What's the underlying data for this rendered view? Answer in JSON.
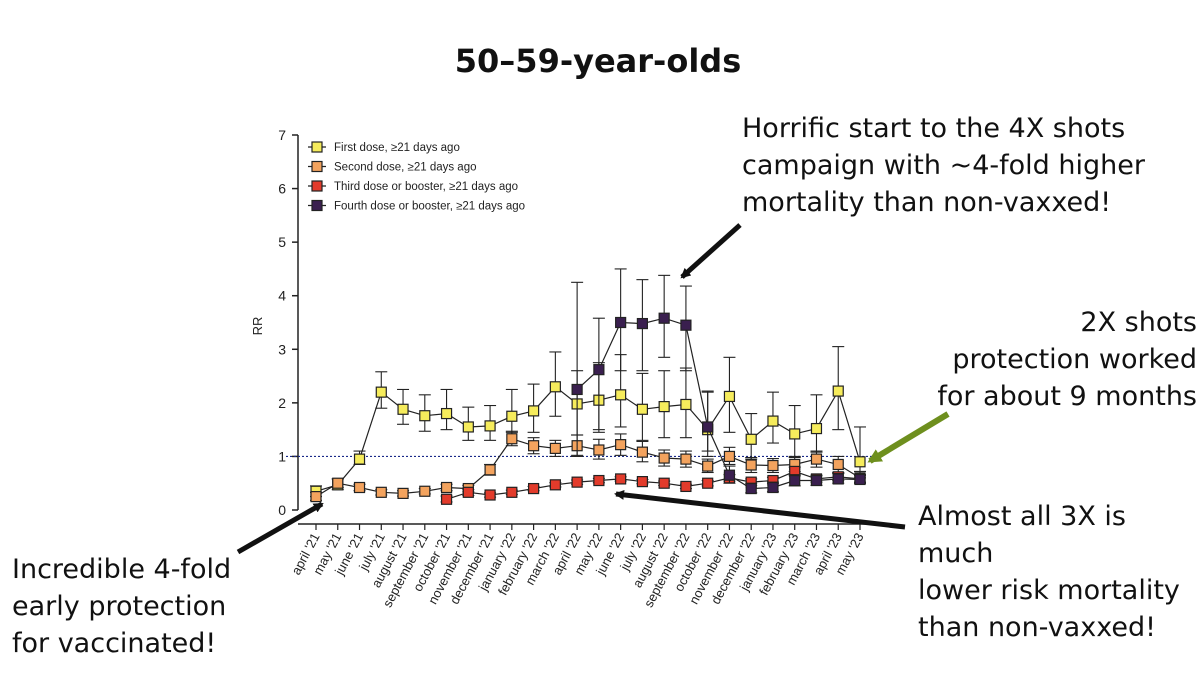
{
  "chart_data": {
    "type": "line",
    "title": "50–59-year-olds",
    "ylabel": "RR",
    "xlabel": "",
    "ylim": [
      0,
      7
    ],
    "yticks": [
      "0",
      "1",
      "2",
      "3",
      "4",
      "5",
      "6",
      "7"
    ],
    "reference_line": 1,
    "legend_position": "top-left",
    "categories": [
      "april '21",
      "may '21",
      "june '21",
      "july '21",
      "august '21",
      "september '21",
      "october '21",
      "november '21",
      "december '21",
      "january '22",
      "february '22",
      "march '22",
      "april '22",
      "may '22",
      "june '22",
      "july '22",
      "august '22",
      "september '22",
      "october '22",
      "november '22",
      "december '22",
      "january '23",
      "february '23",
      "march '23",
      "april '23",
      "may '23"
    ],
    "series": [
      {
        "name": "First dose, ≥21 days ago",
        "color": "#f6ec5c",
        "values": [
          0.35,
          0.47,
          0.95,
          2.2,
          1.88,
          1.76,
          1.8,
          1.55,
          1.57,
          1.75,
          1.85,
          2.3,
          1.98,
          2.05,
          2.15,
          1.88,
          1.93,
          1.97,
          1.5,
          2.12,
          1.32,
          1.66,
          1.42,
          1.52,
          2.22,
          0.9
        ],
        "err_low": [
          0.25,
          0.38,
          0.85,
          1.9,
          1.6,
          1.47,
          1.5,
          1.3,
          1.3,
          1.45,
          1.45,
          1.75,
          1.4,
          1.45,
          1.55,
          1.3,
          1.35,
          1.35,
          1.0,
          1.45,
          0.95,
          1.25,
          1.0,
          1.08,
          1.5,
          0.6
        ],
        "err_high": [
          0.45,
          0.58,
          1.1,
          2.58,
          2.25,
          2.15,
          2.25,
          1.92,
          1.95,
          2.25,
          2.35,
          2.95,
          2.6,
          2.75,
          2.9,
          2.55,
          2.6,
          2.65,
          2.2,
          2.85,
          1.8,
          2.2,
          1.95,
          2.15,
          3.05,
          1.55
        ]
      },
      {
        "name": "Second dose, ≥21 days ago",
        "color": "#f3a35e",
        "values": [
          0.25,
          0.5,
          0.42,
          0.33,
          0.31,
          0.35,
          0.42,
          0.4,
          0.75,
          1.33,
          1.2,
          1.15,
          1.2,
          1.12,
          1.22,
          1.08,
          0.97,
          0.95,
          0.82,
          1.0,
          0.84,
          0.83,
          0.85,
          0.95,
          0.85,
          0.6
        ],
        "err_low": [
          0.18,
          0.42,
          0.36,
          0.28,
          0.26,
          0.3,
          0.36,
          0.34,
          0.65,
          1.2,
          1.05,
          1.0,
          1.02,
          0.95,
          1.02,
          0.9,
          0.82,
          0.8,
          0.7,
          0.85,
          0.7,
          0.7,
          0.72,
          0.8,
          0.7,
          0.5
        ],
        "err_high": [
          0.33,
          0.58,
          0.48,
          0.38,
          0.36,
          0.4,
          0.48,
          0.46,
          0.85,
          1.47,
          1.35,
          1.3,
          1.4,
          1.32,
          1.42,
          1.28,
          1.12,
          1.1,
          0.95,
          1.17,
          0.98,
          0.96,
          0.98,
          1.1,
          1.0,
          0.72
        ]
      },
      {
        "name": "Third dose or booster, ≥21 days ago",
        "color": "#e23b2b",
        "values": [
          null,
          null,
          null,
          null,
          null,
          null,
          0.2,
          0.33,
          0.28,
          0.33,
          0.4,
          0.47,
          0.52,
          0.55,
          0.58,
          0.53,
          0.5,
          0.44,
          0.5,
          0.6,
          0.52,
          0.55,
          0.72,
          0.58,
          0.62,
          0.58
        ],
        "err_low": [
          null,
          null,
          null,
          null,
          null,
          null,
          0.15,
          0.27,
          0.24,
          0.29,
          0.36,
          0.43,
          0.48,
          0.51,
          0.54,
          0.49,
          0.46,
          0.4,
          0.45,
          0.54,
          0.46,
          0.49,
          0.64,
          0.52,
          0.55,
          0.52
        ],
        "err_high": [
          null,
          null,
          null,
          null,
          null,
          null,
          0.26,
          0.38,
          0.32,
          0.37,
          0.44,
          0.51,
          0.56,
          0.59,
          0.62,
          0.57,
          0.54,
          0.48,
          0.55,
          0.66,
          0.58,
          0.61,
          0.8,
          0.64,
          0.69,
          0.64
        ]
      },
      {
        "name": "Fourth dose or booster, ≥21 days ago",
        "color": "#3a1f4f",
        "values": [
          null,
          null,
          null,
          null,
          null,
          null,
          null,
          null,
          null,
          null,
          null,
          null,
          2.25,
          2.62,
          3.5,
          3.48,
          3.58,
          3.45,
          1.55,
          0.65,
          0.4,
          0.42,
          0.55,
          0.55,
          0.58,
          0.57
        ],
        "err_low": [
          null,
          null,
          null,
          null,
          null,
          null,
          null,
          null,
          null,
          null,
          null,
          null,
          1.0,
          1.5,
          2.6,
          2.6,
          2.85,
          2.6,
          1.1,
          0.5,
          0.32,
          0.34,
          0.45,
          0.46,
          0.5,
          0.5
        ],
        "err_high": [
          null,
          null,
          null,
          null,
          null,
          null,
          null,
          null,
          null,
          null,
          null,
          null,
          4.25,
          3.58,
          4.5,
          4.3,
          4.38,
          4.18,
          2.22,
          0.82,
          0.5,
          0.52,
          0.66,
          0.65,
          0.68,
          0.66
        ]
      }
    ]
  },
  "annotations": {
    "top": [
      "Horrific start to the 4X shots",
      "campaign with ~4-fold higher",
      "mortality than non-vaxxed!"
    ],
    "middle": [
      "2X shots",
      "protection worked",
      "for about 9 months"
    ],
    "right": [
      "Almost all 3X is much",
      "lower risk mortality",
      "than non-vaxxed!"
    ],
    "left": [
      "Incredible 4-fold",
      "early protection",
      "for vaccinated!"
    ]
  },
  "colors": {
    "arrow": "#111111",
    "arrow_green": "#6e8f1e",
    "reference_line": "#1a2a8a"
  }
}
